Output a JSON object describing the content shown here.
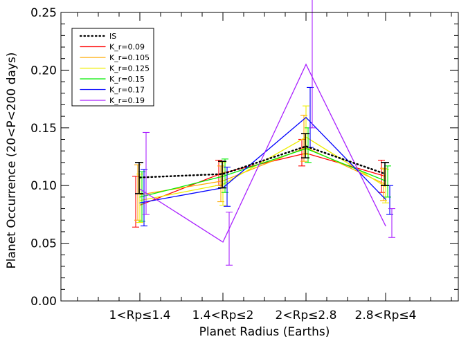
{
  "chart_data": {
    "type": "line",
    "xlabel": "Planet Radius (Earths)",
    "ylabel": "Planet Occurrence (20<P<200 days)",
    "categories": [
      "1<Rp≤1.4",
      "1.4<Rp≤2",
      "2<Rp≤2.8",
      "2.8<Rp≤4"
    ],
    "ylim": [
      0,
      0.25
    ],
    "yticks": [
      "0.00",
      "0.05",
      "0.10",
      "0.15",
      "0.20",
      "0.25"
    ],
    "legend_position": "top-left",
    "series": [
      {
        "name": "IS",
        "color": "#000000",
        "dash": "dotted",
        "values": [
          0.107,
          0.11,
          0.134,
          0.11
        ],
        "err_low": [
          0.093,
          0.098,
          0.124,
          0.1
        ],
        "err_high": [
          0.12,
          0.121,
          0.145,
          0.12
        ]
      },
      {
        "name": "K_r=0.09",
        "color": "#ff0000",
        "values": [
          0.083,
          0.111,
          0.128,
          0.108
        ],
        "err_low": [
          0.064,
          0.1,
          0.117,
          0.094
        ],
        "err_high": [
          0.108,
          0.122,
          0.14,
          0.122
        ]
      },
      {
        "name": "K_r=0.105",
        "color": "#ffaa00",
        "values": [
          0.092,
          0.104,
          0.133,
          0.101
        ],
        "err_low": [
          0.07,
          0.086,
          0.121,
          0.087
        ],
        "err_high": [
          0.118,
          0.117,
          0.161,
          0.115
        ]
      },
      {
        "name": "K_r=0.125",
        "color": "#eeee00",
        "values": [
          0.087,
          0.101,
          0.142,
          0.099
        ],
        "err_low": [
          0.068,
          0.083,
          0.127,
          0.085
        ],
        "err_high": [
          0.11,
          0.12,
          0.169,
          0.114
        ]
      },
      {
        "name": "K_r=0.15",
        "color": "#00ee00",
        "values": [
          0.09,
          0.108,
          0.132,
          0.104
        ],
        "err_low": [
          0.069,
          0.094,
          0.12,
          0.09
        ],
        "err_high": [
          0.112,
          0.123,
          0.15,
          0.117
        ]
      },
      {
        "name": "K_r=0.17",
        "color": "#0000ff",
        "values": [
          0.085,
          0.098,
          0.159,
          0.088
        ],
        "err_low": [
          0.065,
          0.082,
          0.133,
          0.075
        ],
        "err_high": [
          0.114,
          0.116,
          0.185,
          0.1
        ]
      },
      {
        "name": "K_r=0.19",
        "color": "#aa22ff",
        "values": [
          0.097,
          0.051,
          0.205,
          0.065
        ],
        "err_low": [
          0.075,
          0.031,
          0.15,
          0.055
        ],
        "err_high": [
          0.146,
          0.077,
          0.264,
          0.08
        ]
      }
    ]
  }
}
